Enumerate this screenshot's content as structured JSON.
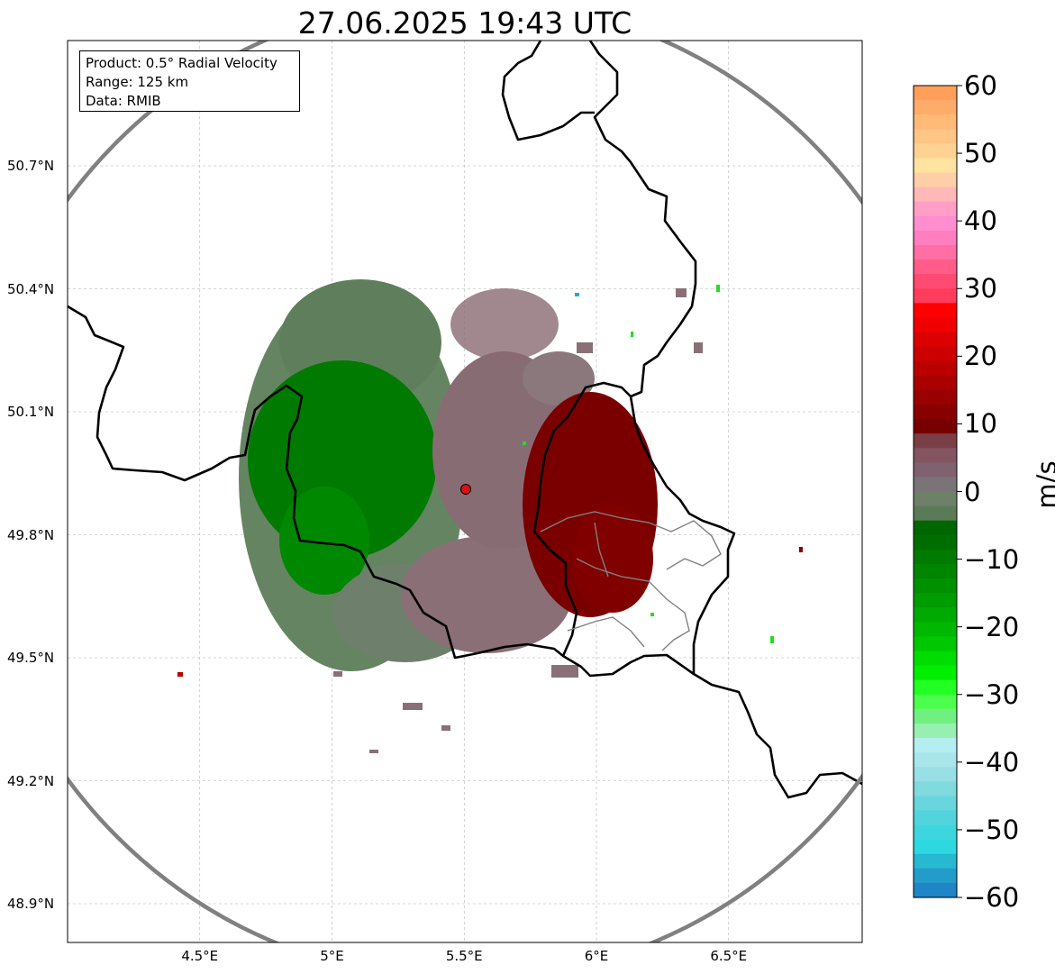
{
  "title": "27.06.2025 19:43 UTC",
  "info": {
    "product": "Product: 0.5° Radial Velocity",
    "range": "Range: 125 km",
    "data": "Data: RMIB"
  },
  "axes": {
    "lat_labels": [
      "50.7°N",
      "50.4°N",
      "50.1°N",
      "49.8°N",
      "49.5°N",
      "49.2°N",
      "48.9°N"
    ],
    "lat_values": [
      50.7,
      50.4,
      50.1,
      49.8,
      49.5,
      49.2,
      48.9
    ],
    "lon_labels": [
      "4.5°E",
      "5°E",
      "5.5°E",
      "6°E",
      "6.5°E"
    ],
    "lon_values": [
      4.5,
      5.0,
      5.5,
      6.0,
      6.5
    ],
    "lat_range": [
      48.8,
      51.0
    ],
    "lon_range": [
      4.0,
      7.0
    ],
    "grid": true
  },
  "radar": {
    "site_lon": 5.505,
    "site_lat": 49.915,
    "site_color": "#dd1111",
    "range_ring_color": "#808080"
  },
  "colorbar": {
    "unit": "m/s",
    "min": -60,
    "max": 60,
    "tick_labels": [
      "60",
      "50",
      "40",
      "30",
      "20",
      "10",
      "0",
      "−10",
      "−20",
      "−30",
      "−40",
      "−50",
      "−60"
    ],
    "tick_values": [
      60,
      50,
      40,
      30,
      20,
      10,
      0,
      -10,
      -20,
      -30,
      -40,
      -50,
      -60
    ],
    "colors_top_to_bottom": [
      "#ff9f5a",
      "#ffac6a",
      "#ffba78",
      "#ffc584",
      "#ffd294",
      "#ffe3a0",
      "#ffd0a8",
      "#ffb8b8",
      "#ff9ec6",
      "#ff8ed0",
      "#ff7ec0",
      "#ff6ea4",
      "#ff5c8a",
      "#ff4a72",
      "#ff3c5c",
      "#ff0000",
      "#f00000",
      "#dd0000",
      "#cc0000",
      "#bb0000",
      "#aa0000",
      "#990000",
      "#880000",
      "#770000",
      "#7a3e46",
      "#845460",
      "#7f6270",
      "#7a7478",
      "#6e8068",
      "#5b7b58",
      "#006600",
      "#006d00",
      "#007a00",
      "#008500",
      "#009000",
      "#009c00",
      "#00aa00",
      "#00b800",
      "#00c800",
      "#00dd00",
      "#00ee00",
      "#22ff22",
      "#4cff4c",
      "#70f080",
      "#98f0b0",
      "#b4eef0",
      "#a8e6ea",
      "#98e0e6",
      "#80dade",
      "#68d6dc",
      "#52d4dc",
      "#3ed6de",
      "#2dd8e0",
      "#27b8d2",
      "#239cca",
      "#1f85c6"
    ]
  }
}
